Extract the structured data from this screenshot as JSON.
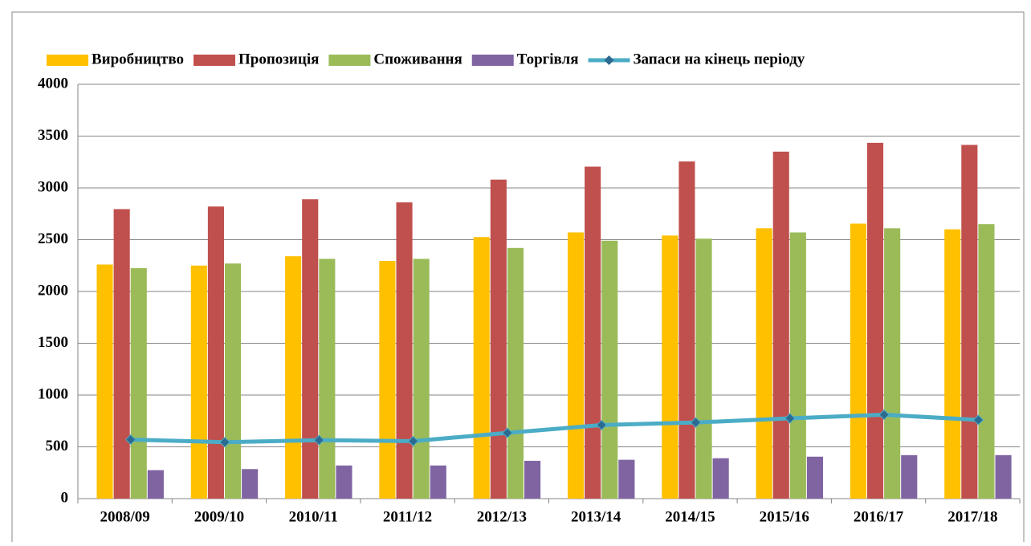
{
  "chart_data": {
    "type": "bar",
    "categories": [
      "2008/09",
      "2009/10",
      "2010/11",
      "2011/12",
      "2012/13",
      "2013/14",
      "2014/15",
      "2015/16",
      "2016/17",
      "2017/18"
    ],
    "series": [
      {
        "name": "Виробництво",
        "color": "#FFC000",
        "values": [
          2260,
          2250,
          2340,
          2295,
          2525,
          2570,
          2540,
          2610,
          2655,
          2600
        ]
      },
      {
        "name": "Пропозиція",
        "color": "#C0504D",
        "values": [
          2795,
          2820,
          2890,
          2860,
          3080,
          3205,
          3255,
          3350,
          3435,
          3415
        ]
      },
      {
        "name": "Споживання",
        "color": "#9BBB59",
        "values": [
          2225,
          2270,
          2315,
          2315,
          2420,
          2490,
          2510,
          2570,
          2610,
          2650
        ]
      },
      {
        "name": "Торгівля",
        "color": "#8064A2",
        "values": [
          275,
          285,
          320,
          320,
          365,
          375,
          390,
          405,
          420,
          420
        ]
      },
      {
        "name": "Запаси на кінець періоду",
        "color": "#4BACC6",
        "type": "line",
        "values": [
          570,
          545,
          565,
          555,
          635,
          710,
          735,
          775,
          810,
          760
        ]
      }
    ],
    "ylim": [
      0,
      4000
    ],
    "yticks": [
      0,
      500,
      1000,
      1500,
      2000,
      2500,
      3000,
      3500,
      4000
    ],
    "grid": true,
    "legend": "top"
  }
}
